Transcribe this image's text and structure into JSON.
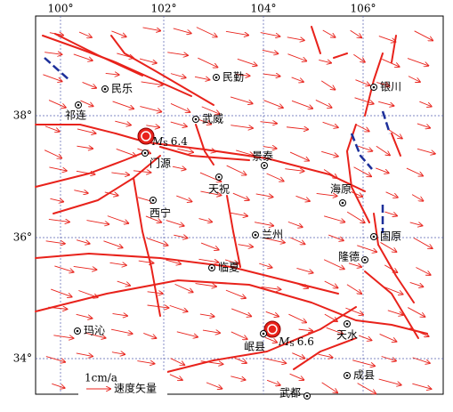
{
  "map": {
    "lon_ticks": [
      "100°",
      "102°",
      "104°",
      "106°"
    ],
    "lat_ticks": [
      "38°",
      "36°",
      "34°"
    ],
    "cities": [
      {
        "name": "民乐"
      },
      {
        "name": "祁连"
      },
      {
        "name": "民勤"
      },
      {
        "name": "银川"
      },
      {
        "name": "武威"
      },
      {
        "name": "门源"
      },
      {
        "name": "景泰"
      },
      {
        "name": "天祝"
      },
      {
        "name": "西宁"
      },
      {
        "name": "海原"
      },
      {
        "name": "兰州"
      },
      {
        "name": "固原"
      },
      {
        "name": "隆德"
      },
      {
        "name": "临夏"
      },
      {
        "name": "玛沁"
      },
      {
        "name": "天水"
      },
      {
        "name": "岷县"
      },
      {
        "name": "成县"
      },
      {
        "name": "武都"
      }
    ],
    "earthquakes": [
      {
        "symbol": "M",
        "subscript": "S",
        "magnitude": 6.4
      },
      {
        "symbol": "M",
        "subscript": "S",
        "magnitude": 6.6
      }
    ],
    "legend": {
      "scale": "1cm/a",
      "label": "速度矢量"
    }
  }
}
